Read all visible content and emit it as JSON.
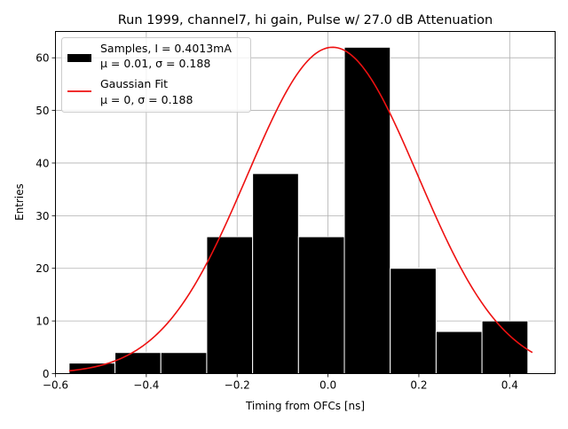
{
  "chart_data": {
    "type": "bar",
    "title": "Run 1999, channel7, hi gain, Pulse w/ 27.0 dB Attenuation",
    "xlabel": "Timing from OFCs [ns]",
    "ylabel": "Entries",
    "xlim": [
      -0.6,
      0.5
    ],
    "ylim": [
      0,
      65
    ],
    "xticks": [
      -0.6,
      -0.4,
      -0.2,
      0.0,
      0.2,
      0.4
    ],
    "xtick_labels": [
      "−0.6",
      "−0.4",
      "−0.2",
      "0.0",
      "0.2",
      "0.4"
    ],
    "yticks": [
      0,
      10,
      20,
      30,
      40,
      50,
      60
    ],
    "ytick_labels": [
      "0",
      "10",
      "20",
      "30",
      "40",
      "50",
      "60"
    ],
    "grid": true,
    "legend_position": "top-left",
    "histogram": {
      "name_line1": "Samples, I = 0.4013mA",
      "name_line2": "μ = 0.01, σ = 0.188",
      "color": "#000000",
      "bin_edges": [
        -0.57,
        -0.469,
        -0.368,
        -0.267,
        -0.166,
        -0.065,
        0.036,
        0.137,
        0.238,
        0.339,
        0.44
      ],
      "counts": [
        2,
        4,
        4,
        26,
        38,
        26,
        62,
        20,
        8,
        10
      ]
    },
    "fit": {
      "name_line1": "Gaussian Fit",
      "name_line2": "μ = 0, σ = 0.188",
      "color": "#ee1111",
      "mu": 0.01,
      "sigma": 0.188,
      "amplitude": 62,
      "x_range": [
        -0.57,
        0.45
      ]
    }
  }
}
